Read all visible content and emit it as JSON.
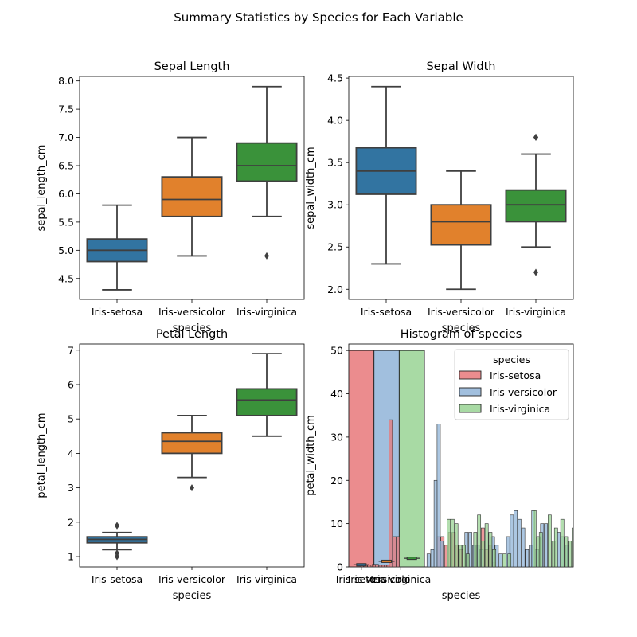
{
  "suptitle": "Summary Statistics by Species for Each Variable",
  "colors": {
    "box_setosa": "#3274a1",
    "box_versicolor": "#e1812c",
    "box_virginica": "#3a923a",
    "box_line": "#3f3f3f",
    "hist_setosa": "#e8787a",
    "hist_versicolor": "#90b4d8",
    "hist_virginica": "#99d394"
  },
  "chart_data": [
    {
      "type": "box",
      "title": "Sepal Length",
      "xlabel": "species",
      "ylabel": "sepal_length_cm",
      "categories": [
        "Iris-setosa",
        "Iris-versicolor",
        "Iris-virginica"
      ],
      "ylim": [
        4.13,
        8.08
      ],
      "yticks": [
        "4.5",
        "5.0",
        "5.5",
        "6.0",
        "6.5",
        "7.0",
        "7.5",
        "8.0"
      ],
      "boxes": [
        {
          "whislo": 4.3,
          "q1": 4.8,
          "med": 5.0,
          "q3": 5.2,
          "whishi": 5.8,
          "fliers": []
        },
        {
          "whislo": 4.9,
          "q1": 5.6,
          "med": 5.9,
          "q3": 6.3,
          "whishi": 7.0,
          "fliers": []
        },
        {
          "whislo": 5.6,
          "q1": 6.225,
          "med": 6.5,
          "q3": 6.9,
          "whishi": 7.9,
          "fliers": [
            4.9
          ]
        }
      ]
    },
    {
      "type": "box",
      "title": "Sepal Width",
      "xlabel": "species",
      "ylabel": "sepal_width_cm",
      "categories": [
        "Iris-setosa",
        "Iris-versicolor",
        "Iris-virginica"
      ],
      "ylim": [
        1.88,
        4.52
      ],
      "yticks": [
        "2.0",
        "2.5",
        "3.0",
        "3.5",
        "4.0",
        "4.5"
      ],
      "boxes": [
        {
          "whislo": 2.3,
          "q1": 3.125,
          "med": 3.4,
          "q3": 3.675,
          "whishi": 4.4,
          "fliers": []
        },
        {
          "whislo": 2.0,
          "q1": 2.525,
          "med": 2.8,
          "q3": 3.0,
          "whishi": 3.4,
          "fliers": []
        },
        {
          "whislo": 2.5,
          "q1": 2.8,
          "med": 3.0,
          "q3": 3.175,
          "whishi": 3.6,
          "fliers": [
            3.8,
            3.8,
            2.2
          ]
        }
      ]
    },
    {
      "type": "box",
      "title": "Petal Length",
      "xlabel": "species",
      "ylabel": "petal_length_cm",
      "categories": [
        "Iris-setosa",
        "Iris-versicolor",
        "Iris-virginica"
      ],
      "ylim": [
        0.7,
        7.18
      ],
      "yticks": [
        "1",
        "2",
        "3",
        "4",
        "5",
        "6",
        "7"
      ],
      "boxes": [
        {
          "whislo": 1.2,
          "q1": 1.4,
          "med": 1.5,
          "q3": 1.575,
          "whishi": 1.7,
          "fliers": [
            1.9,
            1.9,
            1.1,
            1.0
          ]
        },
        {
          "whislo": 3.3,
          "q1": 4.0,
          "med": 4.35,
          "q3": 4.6,
          "whishi": 5.1,
          "fliers": [
            3.0
          ]
        },
        {
          "whislo": 4.5,
          "q1": 5.1,
          "med": 5.55,
          "q3": 5.875,
          "whishi": 6.9,
          "fliers": []
        }
      ]
    },
    {
      "type": "histogram",
      "title": "Histogram of species",
      "xlabel": "species",
      "ylabel": "petal_width_cm",
      "ylim": [
        0,
        51.5
      ],
      "yticks": [
        "0",
        "10",
        "20",
        "30",
        "40",
        "50"
      ],
      "xticklabels": [
        "Iris-setosa",
        "Iris-versicolor",
        "Iris-virginica"
      ],
      "legend": {
        "title": "species",
        "loc": "upper right",
        "entries": [
          "Iris-setosa",
          "Iris-versicolor",
          "Iris-virginica"
        ]
      },
      "count_bars": [
        {
          "species": "Iris-setosa",
          "count": 50
        },
        {
          "species": "Iris-versicolor",
          "count": 50
        },
        {
          "species": "Iris-virginica",
          "count": 50
        }
      ],
      "small_bars": {
        "Iris-setosa": [
          {
            "x": 0.45,
            "y": 0.4
          },
          {
            "x": 0.6,
            "y": 0.4
          },
          {
            "x": 0.75,
            "y": 0.4
          },
          {
            "x": 0.93,
            "y": 0.6
          },
          {
            "x": 1.05,
            "y": 0.6
          },
          {
            "x": 1.2,
            "y": 0.4
          },
          {
            "x": 1.3,
            "y": 0.4
          },
          {
            "x": 1.4,
            "y": 0.4
          },
          {
            "x": 1.5,
            "y": 0.4
          },
          {
            "x": 1.6,
            "y": 34
          },
          {
            "x": 1.75,
            "y": 7
          },
          {
            "x": 1.88,
            "y": 7
          },
          {
            "x": 3.5,
            "y": 7
          },
          {
            "x": 3.65,
            "y": 7
          },
          {
            "x": 3.8,
            "y": 5
          },
          {
            "x": 3.95,
            "y": 8
          },
          {
            "x": 4.1,
            "y": 8
          },
          {
            "x": 4.25,
            "y": 5
          },
          {
            "x": 4.4,
            "y": 4
          },
          {
            "x": 5.25,
            "y": 9
          },
          {
            "x": 5.4,
            "y": 4
          },
          {
            "x": 5.55,
            "y": 5
          },
          {
            "x": 5.7,
            "y": 1
          }
        ],
        "Iris-versicolor": [
          {
            "x": 3.1,
            "y": 3
          },
          {
            "x": 3.25,
            "y": 4
          },
          {
            "x": 3.38,
            "y": 20
          },
          {
            "x": 3.5,
            "y": 33
          },
          {
            "x": 3.62,
            "y": 6
          },
          {
            "x": 4.6,
            "y": 8
          },
          {
            "x": 4.75,
            "y": 8
          },
          {
            "x": 4.9,
            "y": 5
          },
          {
            "x": 5.05,
            "y": 5
          },
          {
            "x": 5.2,
            "y": 4
          },
          {
            "x": 5.65,
            "y": 7
          },
          {
            "x": 5.8,
            "y": 5
          },
          {
            "x": 5.95,
            "y": 3
          },
          {
            "x": 6.25,
            "y": 7
          },
          {
            "x": 6.4,
            "y": 12
          },
          {
            "x": 6.55,
            "y": 13
          },
          {
            "x": 6.7,
            "y": 11
          },
          {
            "x": 6.85,
            "y": 9
          },
          {
            "x": 7.0,
            "y": 4
          },
          {
            "x": 7.15,
            "y": 5
          },
          {
            "x": 7.25,
            "y": 13
          },
          {
            "x": 7.4,
            "y": 4
          },
          {
            "x": 7.6,
            "y": 10
          },
          {
            "x": 7.75,
            "y": 10
          },
          {
            "x": 8.25,
            "y": 8
          },
          {
            "x": 8.4,
            "y": 7
          },
          {
            "x": 8.6,
            "y": 5
          },
          {
            "x": 9.0,
            "y": 6
          },
          {
            "x": 9.15,
            "y": 4
          },
          {
            "x": 9.3,
            "y": 3
          },
          {
            "x": 9.45,
            "y": 3
          }
        ],
        "Iris-virginica": [
          {
            "x": 3.9,
            "y": 11
          },
          {
            "x": 4.05,
            "y": 11
          },
          {
            "x": 4.2,
            "y": 10
          },
          {
            "x": 4.35,
            "y": 5
          },
          {
            "x": 4.5,
            "y": 5
          },
          {
            "x": 4.65,
            "y": 3
          },
          {
            "x": 4.95,
            "y": 8
          },
          {
            "x": 5.1,
            "y": 12
          },
          {
            "x": 5.25,
            "y": 6
          },
          {
            "x": 5.4,
            "y": 10
          },
          {
            "x": 5.55,
            "y": 8
          },
          {
            "x": 5.7,
            "y": 4
          },
          {
            "x": 6.1,
            "y": 3
          },
          {
            "x": 6.3,
            "y": 3
          },
          {
            "x": 7.3,
            "y": 13
          },
          {
            "x": 7.45,
            "y": 7
          },
          {
            "x": 7.55,
            "y": 8
          },
          {
            "x": 7.9,
            "y": 12
          },
          {
            "x": 8.05,
            "y": 6
          },
          {
            "x": 8.15,
            "y": 9
          },
          {
            "x": 8.4,
            "y": 11
          },
          {
            "x": 8.55,
            "y": 7
          },
          {
            "x": 8.7,
            "y": 6
          },
          {
            "x": 8.85,
            "y": 9
          },
          {
            "x": 9.0,
            "y": 4
          },
          {
            "x": 9.3,
            "y": 6
          },
          {
            "x": 9.45,
            "y": 11
          },
          {
            "x": 9.6,
            "y": 3
          },
          {
            "x": 9.75,
            "y": 2
          },
          {
            "x": 9.95,
            "y": 4
          },
          {
            "x": 10.2,
            "y": 5
          },
          {
            "x": 10.4,
            "y": 1
          }
        ]
      },
      "overlay_boxes": [
        {
          "pos": 0.5,
          "med": 0.5
        },
        {
          "pos": 1.5,
          "med": 1.3
        },
        {
          "pos": 2.5,
          "med": 2.0
        }
      ]
    }
  ]
}
